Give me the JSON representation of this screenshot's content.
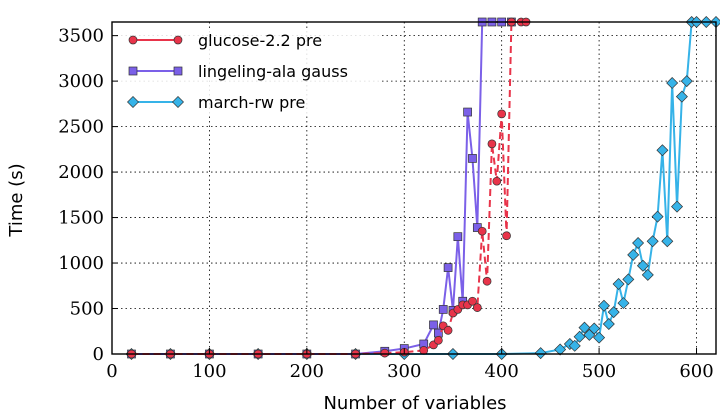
{
  "chart_data": {
    "type": "line",
    "xlabel": "Number of variables",
    "ylabel": "Time (s)",
    "xlim": [
      0,
      620
    ],
    "ylim": [
      0,
      3650
    ],
    "xticks": [
      "0",
      "100",
      "200",
      "300",
      "400",
      "500",
      "600"
    ],
    "yticks": [
      "0",
      "500",
      "1000",
      "1500",
      "2000",
      "2500",
      "3000",
      "3500"
    ],
    "grid": true,
    "legend_position": "top-left",
    "series": [
      {
        "name": "glucose-2.2 pre",
        "color": "#e8344a",
        "marker": "circle",
        "points": [
          [
            20,
            0
          ],
          [
            60,
            0
          ],
          [
            100,
            0
          ],
          [
            150,
            0
          ],
          [
            200,
            0
          ],
          [
            250,
            0
          ],
          [
            280,
            10
          ],
          [
            300,
            20
          ],
          [
            320,
            40
          ],
          [
            330,
            100
          ],
          [
            335,
            150
          ],
          [
            340,
            310
          ],
          [
            345,
            260
          ],
          [
            350,
            450
          ],
          [
            355,
            490
          ],
          [
            360,
            540
          ],
          [
            365,
            540
          ],
          [
            370,
            580
          ],
          [
            375,
            510
          ],
          [
            380,
            1350
          ],
          [
            385,
            800
          ],
          [
            390,
            2310
          ],
          [
            395,
            1900
          ],
          [
            400,
            2640
          ],
          [
            405,
            1300
          ],
          [
            410,
            3700
          ],
          [
            420,
            3700
          ],
          [
            425,
            3700
          ]
        ]
      },
      {
        "name": "lingeling-ala gauss",
        "color": "#7b60e8",
        "marker": "square",
        "points": [
          [
            20,
            0
          ],
          [
            60,
            0
          ],
          [
            100,
            0
          ],
          [
            150,
            0
          ],
          [
            200,
            0
          ],
          [
            250,
            0
          ],
          [
            280,
            30
          ],
          [
            300,
            60
          ],
          [
            320,
            110
          ],
          [
            330,
            320
          ],
          [
            335,
            230
          ],
          [
            340,
            490
          ],
          [
            345,
            950
          ],
          [
            350,
            480
          ],
          [
            355,
            1290
          ],
          [
            360,
            580
          ],
          [
            365,
            2660
          ],
          [
            370,
            2150
          ],
          [
            375,
            1390
          ],
          [
            380,
            3700
          ],
          [
            390,
            3700
          ],
          [
            400,
            3700
          ],
          [
            410,
            3700
          ]
        ]
      },
      {
        "name": "march-rw pre",
        "color": "#36b3e8",
        "marker": "diamond",
        "points": [
          [
            20,
            0
          ],
          [
            60,
            0
          ],
          [
            100,
            0
          ],
          [
            150,
            0
          ],
          [
            200,
            0
          ],
          [
            250,
            0
          ],
          [
            300,
            0
          ],
          [
            350,
            0
          ],
          [
            400,
            0
          ],
          [
            440,
            10
          ],
          [
            460,
            50
          ],
          [
            470,
            110
          ],
          [
            475,
            90
          ],
          [
            480,
            190
          ],
          [
            485,
            290
          ],
          [
            490,
            210
          ],
          [
            495,
            280
          ],
          [
            500,
            180
          ],
          [
            505,
            530
          ],
          [
            510,
            330
          ],
          [
            515,
            460
          ],
          [
            520,
            770
          ],
          [
            525,
            560
          ],
          [
            530,
            820
          ],
          [
            535,
            1090
          ],
          [
            540,
            1220
          ],
          [
            545,
            970
          ],
          [
            550,
            870
          ],
          [
            555,
            1240
          ],
          [
            560,
            1510
          ],
          [
            565,
            2240
          ],
          [
            570,
            1240
          ],
          [
            575,
            2980
          ],
          [
            580,
            1620
          ],
          [
            585,
            2830
          ],
          [
            590,
            3000
          ],
          [
            595,
            3700
          ],
          [
            600,
            3700
          ],
          [
            610,
            3700
          ],
          [
            620,
            3700
          ]
        ]
      }
    ]
  }
}
